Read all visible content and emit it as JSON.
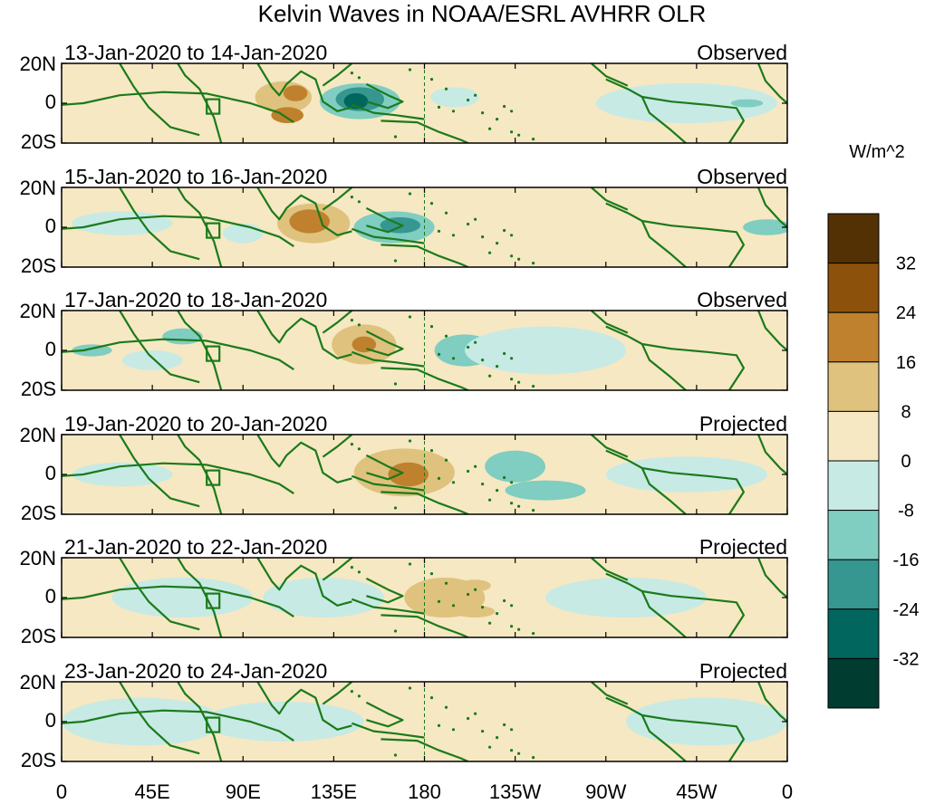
{
  "chart_data": {
    "type": "heatmap",
    "title": "Kelvin Waves in NOAA/ESRL AVHRR OLR",
    "units_label": "W/m^2",
    "x_tick_labels": [
      "0",
      "45E",
      "90E",
      "135E",
      "180",
      "135W",
      "90W",
      "45W",
      "0"
    ],
    "x_tick_lons": [
      0,
      45,
      90,
      135,
      180,
      225,
      270,
      315,
      360
    ],
    "y_tick_labels": [
      "20N",
      "0",
      "20S"
    ],
    "y_tick_lats": [
      20,
      0,
      -20
    ],
    "xlim": [
      0,
      360
    ],
    "ylim": [
      -20,
      20
    ],
    "dateline_lon": 180,
    "legend": {
      "levels": [
        "32",
        "24",
        "16",
        "8",
        "0",
        "-8",
        "-16",
        "-24",
        "-32"
      ],
      "colors": [
        "#543005",
        "#8c510a",
        "#bf812d",
        "#dfc27d",
        "#f6e8c3",
        "#c7eae5",
        "#80cdc1",
        "#35978f",
        "#01665e",
        "#003c30"
      ]
    },
    "panels": [
      {
        "dates": "13-Jan-2020 to 14-Jan-2020",
        "status": "Observed",
        "anomalies": [
          {
            "lon": 110,
            "lat": 3,
            "rx": 14,
            "ry": 8,
            "value": 12
          },
          {
            "lon": 112,
            "lat": -6,
            "rx": 8,
            "ry": 4,
            "value": 20
          },
          {
            "lon": 116,
            "lat": 5,
            "rx": 6,
            "ry": 4,
            "value": 16
          },
          {
            "lon": 20,
            "lat": 0,
            "rx": 18,
            "ry": 5,
            "value": 6
          },
          {
            "lon": 148,
            "lat": 1,
            "rx": 20,
            "ry": 9,
            "value": -12
          },
          {
            "lon": 148,
            "lat": 2,
            "rx": 12,
            "ry": 6,
            "value": -20
          },
          {
            "lon": 146,
            "lat": 1,
            "rx": 6,
            "ry": 4,
            "value": -28
          },
          {
            "lon": 310,
            "lat": 0,
            "rx": 45,
            "ry": 10,
            "value": -5
          },
          {
            "lon": 340,
            "lat": 0,
            "rx": 8,
            "ry": 2,
            "value": -12
          },
          {
            "lon": 195,
            "lat": 3,
            "rx": 12,
            "ry": 5,
            "value": -5
          }
        ]
      },
      {
        "dates": "15-Jan-2020 to 16-Jan-2020",
        "status": "Observed",
        "anomalies": [
          {
            "lon": 125,
            "lat": 2,
            "rx": 18,
            "ry": 10,
            "value": 12
          },
          {
            "lon": 123,
            "lat": 3,
            "rx": 10,
            "ry": 6,
            "value": 18
          },
          {
            "lon": 165,
            "lat": 0,
            "rx": 20,
            "ry": 8,
            "value": -12
          },
          {
            "lon": 168,
            "lat": 1,
            "rx": 10,
            "ry": 4,
            "value": -20
          },
          {
            "lon": 30,
            "lat": 2,
            "rx": 25,
            "ry": 6,
            "value": -5
          },
          {
            "lon": 350,
            "lat": 0,
            "rx": 12,
            "ry": 4,
            "value": -16
          },
          {
            "lon": 90,
            "lat": -3,
            "rx": 10,
            "ry": 5,
            "value": -5
          }
        ]
      },
      {
        "dates": "17-Jan-2020 to 18-Jan-2020",
        "status": "Observed",
        "anomalies": [
          {
            "lon": 150,
            "lat": 3,
            "rx": 16,
            "ry": 10,
            "value": 12
          },
          {
            "lon": 150,
            "lat": 3,
            "rx": 6,
            "ry": 4,
            "value": 20
          },
          {
            "lon": 15,
            "lat": 0,
            "rx": 10,
            "ry": 3,
            "value": -16
          },
          {
            "lon": 200,
            "lat": 0,
            "rx": 15,
            "ry": 8,
            "value": -12
          },
          {
            "lon": 240,
            "lat": 0,
            "rx": 40,
            "ry": 12,
            "value": -5
          },
          {
            "lon": 45,
            "lat": -5,
            "rx": 15,
            "ry": 5,
            "value": -5
          },
          {
            "lon": 60,
            "lat": 7,
            "rx": 10,
            "ry": 4,
            "value": -10
          }
        ]
      },
      {
        "dates": "19-Jan-2020 to 20-Jan-2020",
        "status": "Projected",
        "anomalies": [
          {
            "lon": 170,
            "lat": 1,
            "rx": 25,
            "ry": 12,
            "value": 11
          },
          {
            "lon": 172,
            "lat": 0,
            "rx": 10,
            "ry": 6,
            "value": 16
          },
          {
            "lon": 225,
            "lat": 4,
            "rx": 15,
            "ry": 8,
            "value": -12
          },
          {
            "lon": 240,
            "lat": -8,
            "rx": 20,
            "ry": 5,
            "value": -10
          },
          {
            "lon": 30,
            "lat": 0,
            "rx": 25,
            "ry": 6,
            "value": -5
          },
          {
            "lon": 310,
            "lat": 0,
            "rx": 40,
            "ry": 9,
            "value": -5
          }
        ]
      },
      {
        "dates": "21-Jan-2020 to 22-Jan-2020",
        "status": "Projected",
        "anomalies": [
          {
            "lon": 190,
            "lat": 0,
            "rx": 20,
            "ry": 10,
            "value": 11
          },
          {
            "lon": 205,
            "lat": 6,
            "rx": 8,
            "ry": 3,
            "value": 14
          },
          {
            "lon": 205,
            "lat": -7,
            "rx": 10,
            "ry": 3,
            "value": 14
          },
          {
            "lon": 60,
            "lat": 0,
            "rx": 35,
            "ry": 10,
            "value": -5
          },
          {
            "lon": 130,
            "lat": 0,
            "rx": 30,
            "ry": 10,
            "value": -5
          },
          {
            "lon": 280,
            "lat": 0,
            "rx": 40,
            "ry": 10,
            "value": -5
          }
        ]
      },
      {
        "dates": "23-Jan-2020 to 24-Jan-2020",
        "status": "Projected",
        "anomalies": [
          {
            "lon": 220,
            "lat": 0,
            "rx": 40,
            "ry": 14,
            "value": 5
          },
          {
            "lon": 40,
            "lat": 0,
            "rx": 40,
            "ry": 12,
            "value": -5
          },
          {
            "lon": 110,
            "lat": 0,
            "rx": 40,
            "ry": 10,
            "value": -5
          },
          {
            "lon": 320,
            "lat": 0,
            "rx": 40,
            "ry": 12,
            "value": -5
          }
        ]
      }
    ]
  }
}
